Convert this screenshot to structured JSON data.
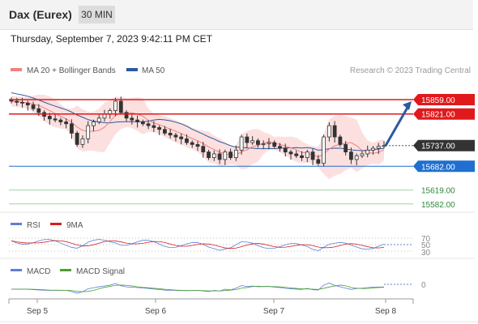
{
  "header": {
    "instrument": "Dax (Eurex)",
    "timeframe": "30 MIN",
    "datetime": "Thursday, September 7, 2023 9:42:11 PM CET"
  },
  "legend": {
    "ma20_label": "MA 20 + Bollinger Bands",
    "ma50_label": "MA 50",
    "credit": "Research © 2023 Trading Central"
  },
  "colors": {
    "ma20": "#f08080",
    "band": "#fbdada",
    "ma50": "#2b5a9e",
    "resistance": "#e0191c",
    "support": "#1f6fd0",
    "support_green": "#9fd49f",
    "rsi": "#5b7fd6",
    "rsi_ma": "#d21f1f",
    "macd": "#5b7fd6",
    "macd_signal": "#4aa02c",
    "candle": "#333333"
  },
  "levels": {
    "r2": "15859.00",
    "r1": "15821.00",
    "last": "15737.00",
    "s1": "15682.00",
    "s2": "15619.00",
    "s3": "15582.00"
  },
  "rsi": {
    "label": "RSI",
    "ma_label": "9MA",
    "levels": [
      "70",
      "50",
      "30"
    ]
  },
  "macd": {
    "label": "MACD",
    "signal_label": "MACD Signal",
    "zero": "0"
  },
  "xaxis": {
    "ticks": [
      "Sep 5",
      "Sep 6",
      "Sep 7",
      "Sep 8"
    ]
  },
  "chart_data": {
    "type": "candlestick",
    "title": "Dax (Eurex)",
    "timeframe": "30 MIN",
    "ylim": [
      15560,
      15900
    ],
    "x_ticks": [
      "Sep 5",
      "Sep 6",
      "Sep 7",
      "Sep 8"
    ],
    "close_series": [
      15855,
      15852,
      15850,
      15845,
      15835,
      15825,
      15815,
      15808,
      15805,
      15800,
      15795,
      15770,
      15740,
      15755,
      15790,
      15800,
      15810,
      15820,
      15830,
      15855,
      15825,
      15810,
      15805,
      15800,
      15795,
      15790,
      15785,
      15780,
      15770,
      15765,
      15760,
      15755,
      15745,
      15740,
      15735,
      15720,
      15705,
      15715,
      15700,
      15720,
      15705,
      15725,
      15760,
      15745,
      15750,
      15740,
      15742,
      15745,
      15735,
      15730,
      15720,
      15715,
      15710,
      15705,
      15720,
      15700,
      15690,
      15760,
      15790,
      15760,
      15740,
      15720,
      15700,
      15710,
      15715,
      15725,
      15730,
      15735,
      15737
    ],
    "resistance_levels": [
      15859.0,
      15821.0
    ],
    "support_levels": [
      15682.0,
      15619.0,
      15582.0
    ],
    "last_price": 15737.0,
    "rsi_levels": [
      70,
      50,
      30
    ],
    "macd_zero": 0
  }
}
